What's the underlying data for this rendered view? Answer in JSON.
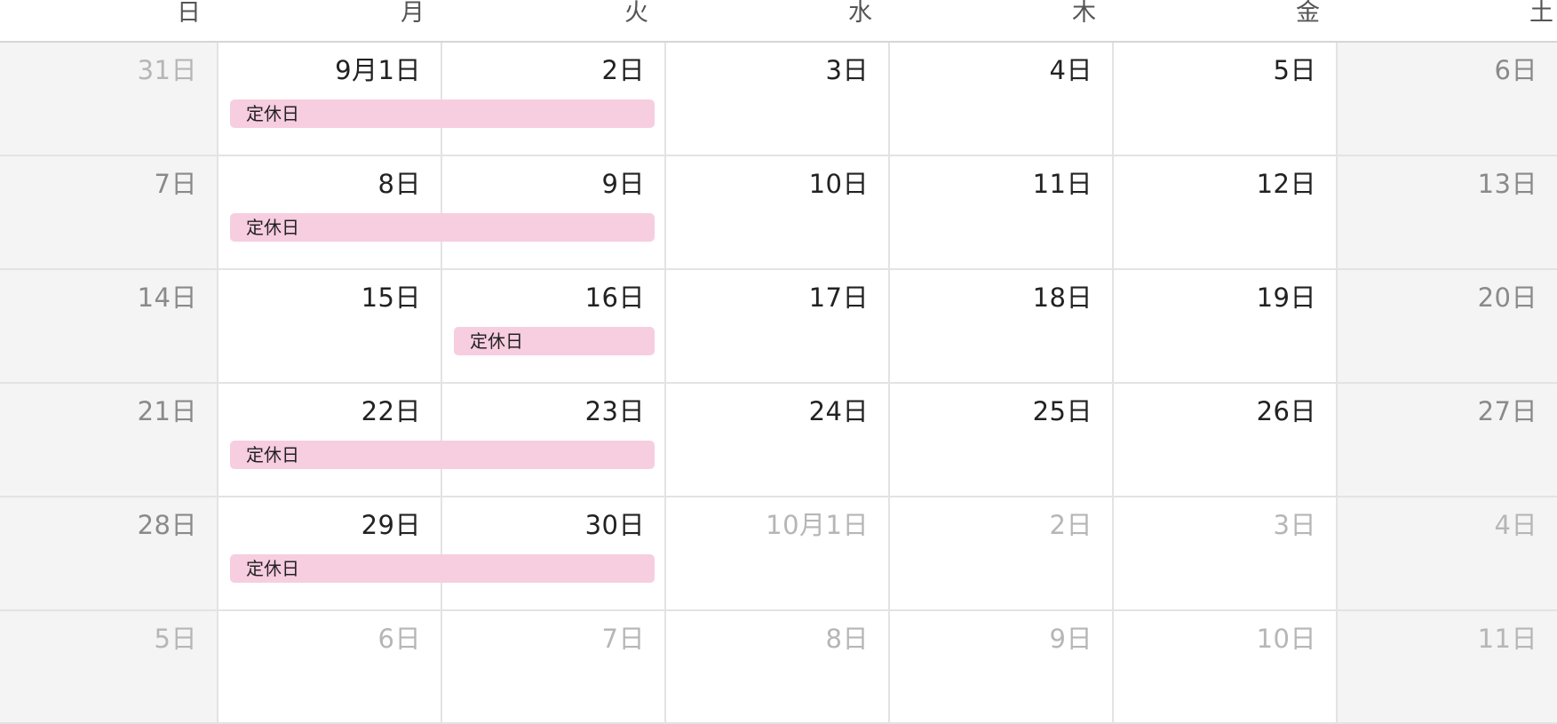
{
  "weekdays": [
    "日",
    "月",
    "火",
    "水",
    "木",
    "金",
    "土"
  ],
  "weeks": [
    [
      {
        "label": "31日",
        "other": true
      },
      {
        "label": "9月1日",
        "other": false
      },
      {
        "label": "2日",
        "other": false
      },
      {
        "label": "3日",
        "other": false
      },
      {
        "label": "4日",
        "other": false
      },
      {
        "label": "5日",
        "other": false
      },
      {
        "label": "6日",
        "other": false
      }
    ],
    [
      {
        "label": "7日",
        "other": false
      },
      {
        "label": "8日",
        "other": false
      },
      {
        "label": "9日",
        "other": false
      },
      {
        "label": "10日",
        "other": false
      },
      {
        "label": "11日",
        "other": false
      },
      {
        "label": "12日",
        "other": false
      },
      {
        "label": "13日",
        "other": false
      }
    ],
    [
      {
        "label": "14日",
        "other": false
      },
      {
        "label": "15日",
        "other": false
      },
      {
        "label": "16日",
        "other": false
      },
      {
        "label": "17日",
        "other": false
      },
      {
        "label": "18日",
        "other": false
      },
      {
        "label": "19日",
        "other": false
      },
      {
        "label": "20日",
        "other": false
      }
    ],
    [
      {
        "label": "21日",
        "other": false
      },
      {
        "label": "22日",
        "other": false
      },
      {
        "label": "23日",
        "other": false
      },
      {
        "label": "24日",
        "other": false
      },
      {
        "label": "25日",
        "other": false
      },
      {
        "label": "26日",
        "other": false
      },
      {
        "label": "27日",
        "other": false
      }
    ],
    [
      {
        "label": "28日",
        "other": false
      },
      {
        "label": "29日",
        "other": false
      },
      {
        "label": "30日",
        "other": false
      },
      {
        "label": "10月1日",
        "other": true
      },
      {
        "label": "2日",
        "other": true
      },
      {
        "label": "3日",
        "other": true
      },
      {
        "label": "4日",
        "other": true
      }
    ],
    [
      {
        "label": "5日",
        "other": true
      },
      {
        "label": "6日",
        "other": true
      },
      {
        "label": "7日",
        "other": true
      },
      {
        "label": "8日",
        "other": true
      },
      {
        "label": "9日",
        "other": true
      },
      {
        "label": "10日",
        "other": true
      },
      {
        "label": "11日",
        "other": true
      }
    ]
  ],
  "events": [
    {
      "title": "定休日",
      "week": 0,
      "start_day": 1,
      "end_day": 2
    },
    {
      "title": "定休日",
      "week": 1,
      "start_day": 1,
      "end_day": 2
    },
    {
      "title": "定休日",
      "week": 2,
      "start_day": 2,
      "end_day": 2
    },
    {
      "title": "定休日",
      "week": 3,
      "start_day": 1,
      "end_day": 2
    },
    {
      "title": "定休日",
      "week": 4,
      "start_day": 1,
      "end_day": 2
    }
  ],
  "colors": {
    "event_background": "#f7cde0",
    "weekend_background": "#f4f4f4"
  }
}
